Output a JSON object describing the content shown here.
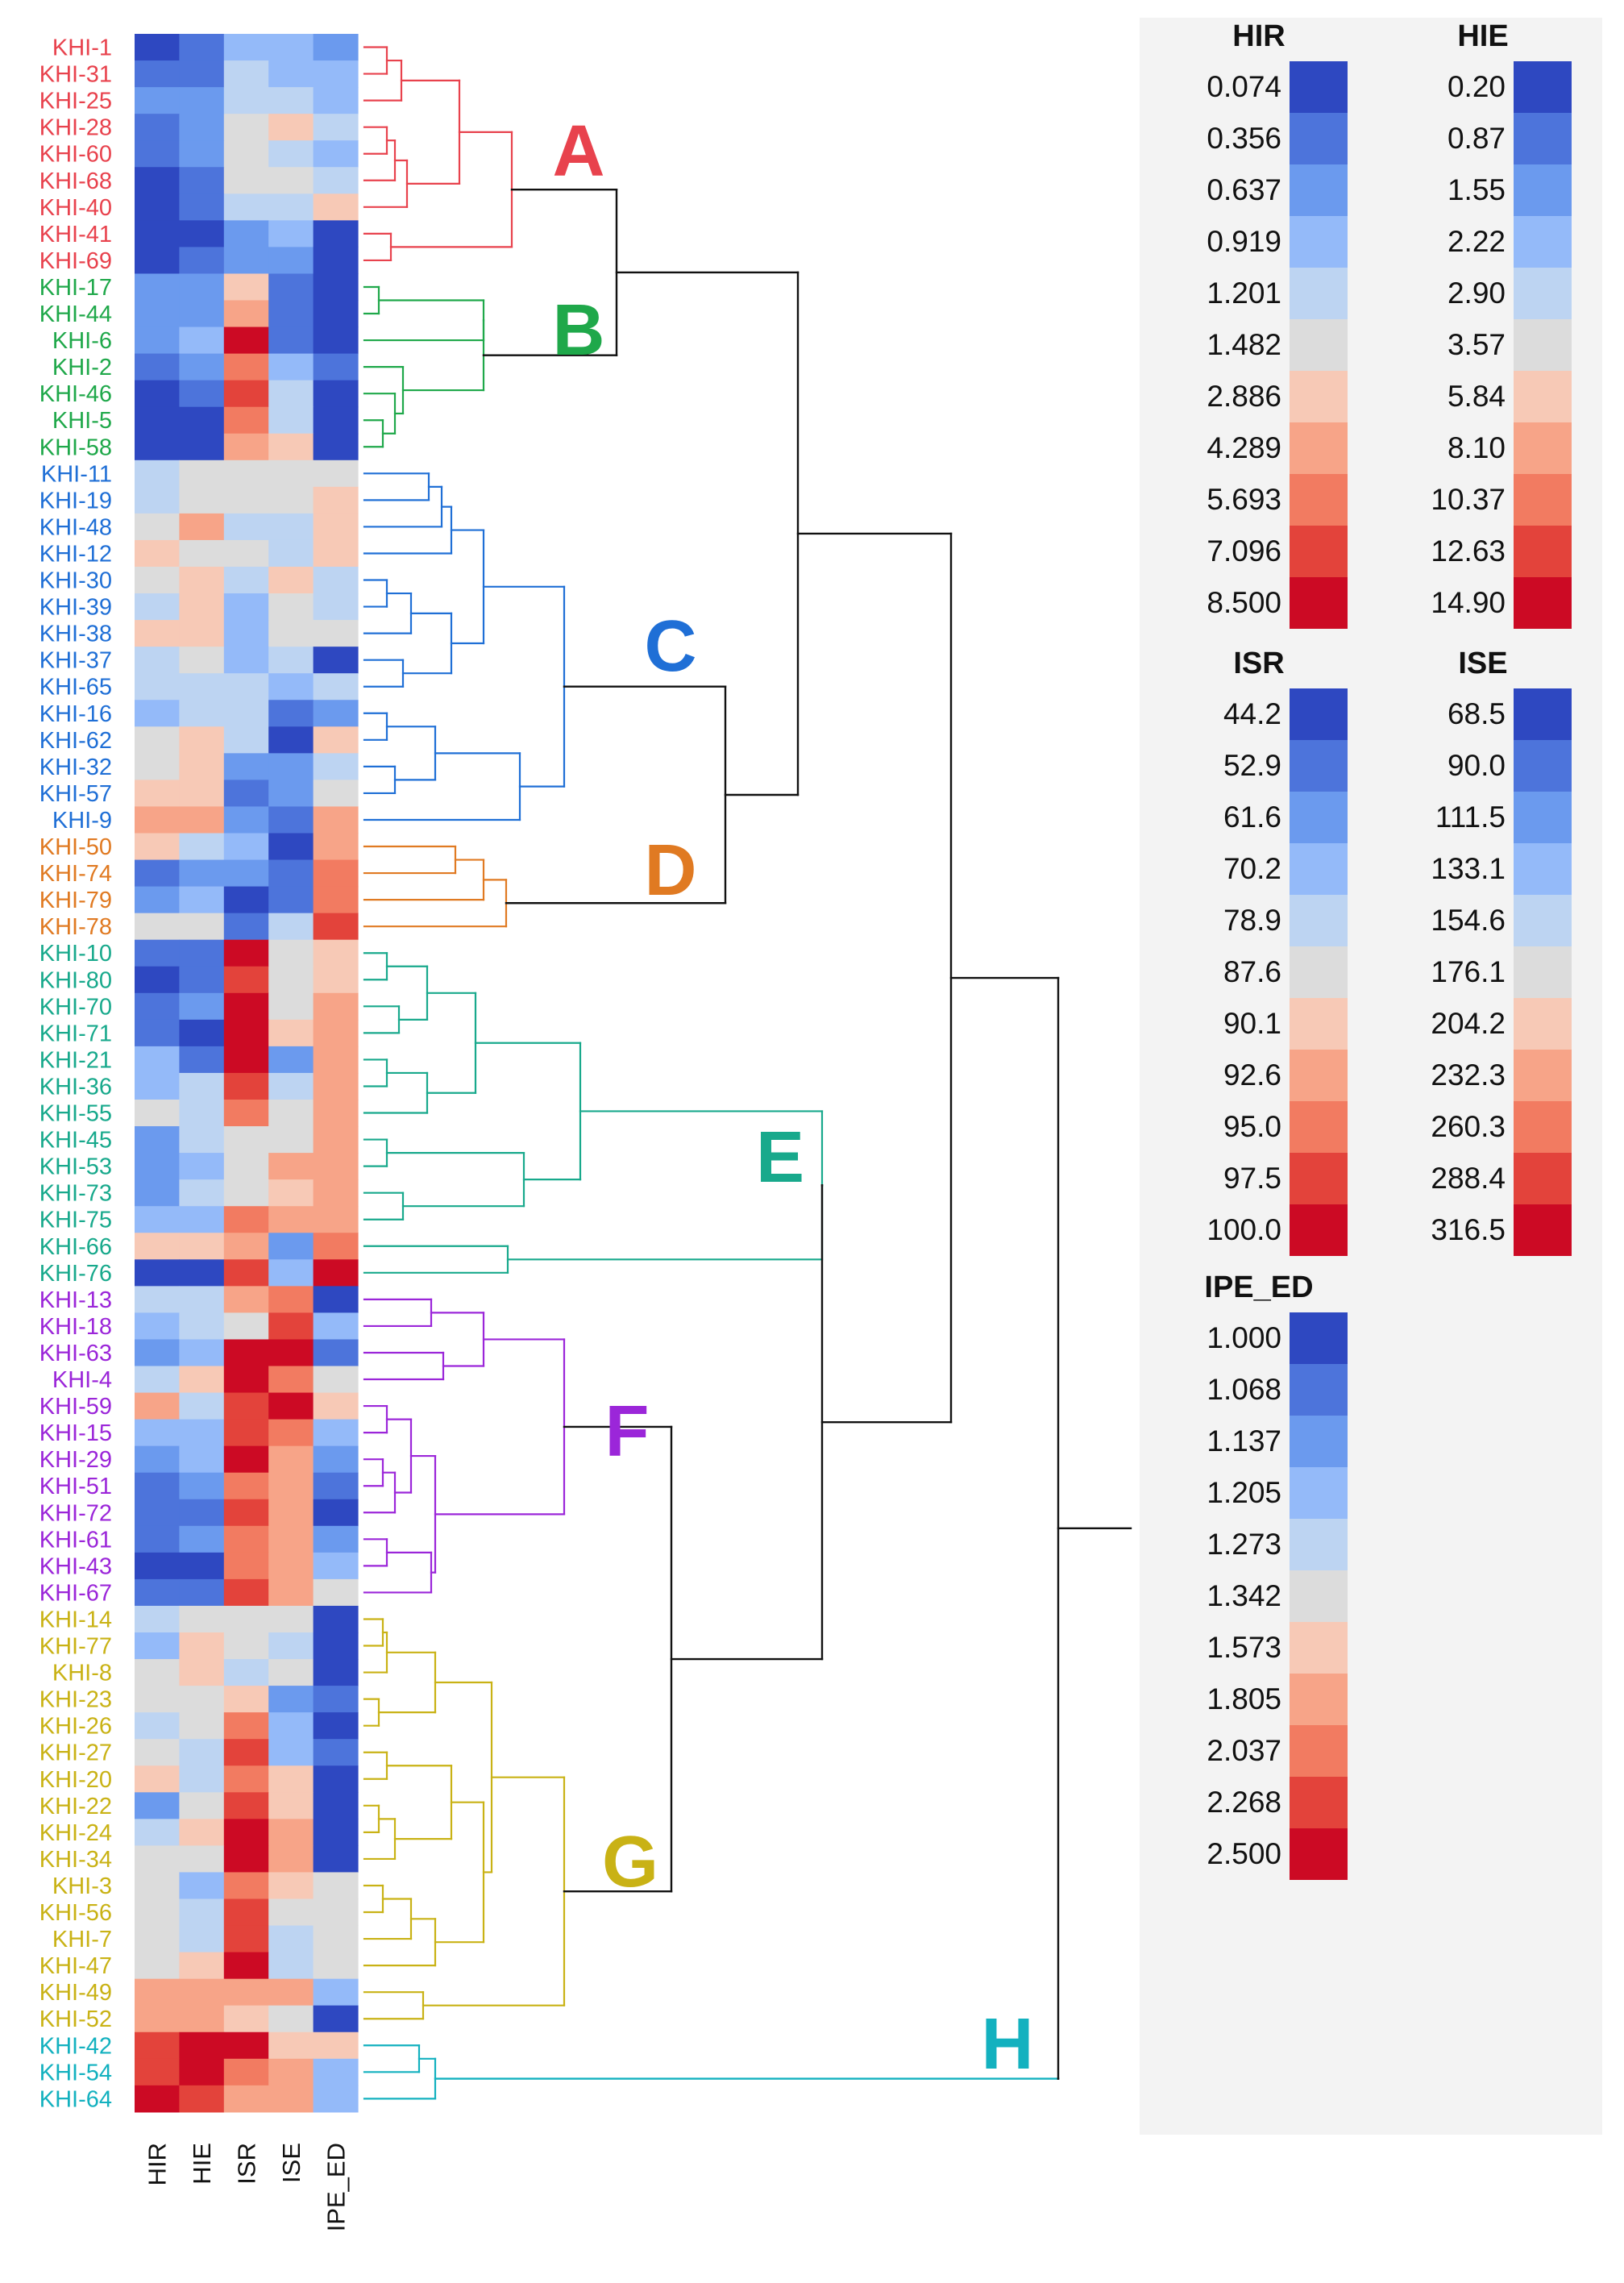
{
  "colors": {
    "scale": [
      "#2e48c1",
      "#4d74db",
      "#6b9aee",
      "#94baf9",
      "#bdd4f2",
      "#dcdcdc",
      "#f7c9b6",
      "#f7a488",
      "#f27b61",
      "#e3433b",
      "#cc0a24"
    ],
    "clusters": {
      "A": "#e8424d",
      "B": "#1fa84a",
      "C": "#1f6fd6",
      "D": "#e07a22",
      "E": "#18a98c",
      "F": "#9b26d9",
      "G": "#c9b215",
      "H": "#13b1bf",
      "root": "#111111"
    }
  },
  "chart_data": {
    "type": "heatmap",
    "columns": [
      "HIR",
      "HIE",
      "ISR",
      "ISE",
      "IPE_ED"
    ],
    "clusters": [
      {
        "name": "A",
        "rows": [
          "KHI-1",
          "KHI-31",
          "KHI-25",
          "KHI-28",
          "KHI-60",
          "KHI-68",
          "KHI-40",
          "KHI-41",
          "KHI-69"
        ]
      },
      {
        "name": "B",
        "rows": [
          "KHI-17",
          "KHI-44",
          "KHI-6",
          "KHI-2",
          "KHI-46",
          "KHI-5",
          "KHI-58"
        ]
      },
      {
        "name": "C",
        "rows": [
          "KHI-11",
          "KHI-19",
          "KHI-48",
          "KHI-12",
          "KHI-30",
          "KHI-39",
          "KHI-38",
          "KHI-37",
          "KHI-65",
          "KHI-16",
          "KHI-62",
          "KHI-32",
          "KHI-57",
          "KHI-9"
        ]
      },
      {
        "name": "D",
        "rows": [
          "KHI-50",
          "KHI-74",
          "KHI-79",
          "KHI-78"
        ]
      },
      {
        "name": "E",
        "rows": [
          "KHI-10",
          "KHI-80",
          "KHI-70",
          "KHI-71",
          "KHI-21",
          "KHI-36",
          "KHI-55",
          "KHI-45",
          "KHI-53",
          "KHI-73",
          "KHI-75",
          "KHI-66",
          "KHI-76"
        ]
      },
      {
        "name": "F",
        "rows": [
          "KHI-13",
          "KHI-18",
          "KHI-63",
          "KHI-4",
          "KHI-59",
          "KHI-15",
          "KHI-29",
          "KHI-51",
          "KHI-72",
          "KHI-61",
          "KHI-43",
          "KHI-67"
        ]
      },
      {
        "name": "G",
        "rows": [
          "KHI-14",
          "KHI-77",
          "KHI-8",
          "KHI-23",
          "KHI-26",
          "KHI-27",
          "KHI-20",
          "KHI-22",
          "KHI-24",
          "KHI-34",
          "KHI-3",
          "KHI-56",
          "KHI-7",
          "KHI-47",
          "KHI-49",
          "KHI-52"
        ]
      },
      {
        "name": "H",
        "rows": [
          "KHI-42",
          "KHI-54",
          "KHI-64"
        ]
      }
    ],
    "cells": [
      [
        0,
        1,
        3,
        3,
        2
      ],
      [
        1,
        1,
        4,
        3,
        3
      ],
      [
        2,
        2,
        4,
        4,
        3
      ],
      [
        1,
        2,
        5,
        6,
        4
      ],
      [
        1,
        2,
        5,
        4,
        3
      ],
      [
        0,
        1,
        5,
        5,
        4
      ],
      [
        0,
        1,
        4,
        4,
        6
      ],
      [
        0,
        0,
        2,
        3,
        0
      ],
      [
        0,
        1,
        2,
        2,
        0
      ],
      [
        2,
        2,
        6,
        1,
        0
      ],
      [
        2,
        2,
        7,
        1,
        0
      ],
      [
        2,
        3,
        10,
        1,
        0
      ],
      [
        1,
        2,
        8,
        3,
        1
      ],
      [
        0,
        1,
        9,
        4,
        0
      ],
      [
        0,
        0,
        8,
        4,
        0
      ],
      [
        0,
        0,
        7,
        6,
        0
      ],
      [
        4,
        5,
        5,
        5,
        5
      ],
      [
        4,
        5,
        5,
        5,
        6
      ],
      [
        5,
        7,
        4,
        4,
        6
      ],
      [
        6,
        5,
        5,
        4,
        6
      ],
      [
        5,
        6,
        4,
        6,
        4
      ],
      [
        4,
        6,
        3,
        5,
        4
      ],
      [
        6,
        6,
        3,
        5,
        5
      ],
      [
        4,
        5,
        3,
        4,
        0
      ],
      [
        4,
        4,
        4,
        3,
        4
      ],
      [
        3,
        4,
        4,
        1,
        2
      ],
      [
        5,
        6,
        4,
        0,
        6
      ],
      [
        5,
        6,
        2,
        2,
        4
      ],
      [
        6,
        6,
        1,
        2,
        5
      ],
      [
        7,
        7,
        2,
        1,
        7
      ],
      [
        6,
        4,
        3,
        0,
        7
      ],
      [
        1,
        2,
        2,
        1,
        8
      ],
      [
        2,
        3,
        0,
        1,
        8
      ],
      [
        5,
        5,
        1,
        4,
        9
      ],
      [
        1,
        1,
        10,
        5,
        6
      ],
      [
        0,
        1,
        9,
        5,
        6
      ],
      [
        1,
        2,
        10,
        5,
        7
      ],
      [
        1,
        0,
        10,
        6,
        7
      ],
      [
        3,
        1,
        10,
        2,
        7
      ],
      [
        3,
        4,
        9,
        4,
        7
      ],
      [
        5,
        4,
        8,
        5,
        7
      ],
      [
        2,
        4,
        5,
        5,
        7
      ],
      [
        2,
        3,
        5,
        7,
        7
      ],
      [
        2,
        4,
        5,
        6,
        7
      ],
      [
        3,
        3,
        8,
        7,
        7
      ],
      [
        6,
        6,
        7,
        2,
        8
      ],
      [
        0,
        0,
        9,
        3,
        10
      ],
      [
        4,
        4,
        7,
        8,
        0
      ],
      [
        3,
        4,
        5,
        9,
        3
      ],
      [
        2,
        3,
        10,
        10,
        1
      ],
      [
        4,
        6,
        10,
        8,
        5
      ],
      [
        7,
        4,
        9,
        10,
        6
      ],
      [
        3,
        3,
        9,
        8,
        3
      ],
      [
        2,
        3,
        10,
        7,
        2
      ],
      [
        1,
        2,
        8,
        7,
        1
      ],
      [
        1,
        1,
        9,
        7,
        0
      ],
      [
        1,
        2,
        8,
        7,
        2
      ],
      [
        0,
        0,
        8,
        7,
        3
      ],
      [
        1,
        1,
        9,
        7,
        5
      ],
      [
        4,
        5,
        5,
        5,
        0
      ],
      [
        3,
        6,
        5,
        4,
        0
      ],
      [
        5,
        6,
        4,
        5,
        0
      ],
      [
        5,
        5,
        6,
        2,
        1
      ],
      [
        4,
        5,
        8,
        3,
        0
      ],
      [
        5,
        4,
        9,
        3,
        1
      ],
      [
        6,
        4,
        8,
        6,
        0
      ],
      [
        2,
        5,
        9,
        6,
        0
      ],
      [
        4,
        6,
        10,
        7,
        0
      ],
      [
        5,
        5,
        10,
        7,
        0
      ],
      [
        5,
        3,
        8,
        6,
        5
      ],
      [
        5,
        4,
        9,
        5,
        5
      ],
      [
        5,
        4,
        9,
        4,
        5
      ],
      [
        5,
        6,
        10,
        4,
        5
      ],
      [
        7,
        7,
        7,
        7,
        3
      ],
      [
        7,
        7,
        6,
        5,
        0
      ],
      [
        9,
        10,
        10,
        6,
        6
      ],
      [
        9,
        10,
        8,
        7,
        3
      ],
      [
        10,
        9,
        7,
        7,
        3
      ]
    ],
    "legends": [
      {
        "title": "HIR",
        "labels": [
          "0.074",
          "0.356",
          "0.637",
          "0.919",
          "1.201",
          "1.482",
          "2.886",
          "4.289",
          "5.693",
          "7.096",
          "8.500"
        ]
      },
      {
        "title": "HIE",
        "labels": [
          "0.20",
          "0.87",
          "1.55",
          "2.22",
          "2.90",
          "3.57",
          "5.84",
          "8.10",
          "10.37",
          "12.63",
          "14.90"
        ]
      },
      {
        "title": "ISR",
        "labels": [
          "44.2",
          "52.9",
          "61.6",
          "70.2",
          "78.9",
          "87.6",
          "90.1",
          "92.6",
          "95.0",
          "97.5",
          "100.0"
        ]
      },
      {
        "title": "ISE",
        "labels": [
          "68.5",
          "90.0",
          "111.5",
          "133.1",
          "154.6",
          "176.1",
          "204.2",
          "232.3",
          "260.3",
          "288.4",
          "316.5"
        ]
      },
      {
        "title": "IPE_ED",
        "labels": [
          "1.000",
          "1.068",
          "1.137",
          "1.205",
          "1.273",
          "1.342",
          "1.573",
          "1.805",
          "2.037",
          "2.268",
          "2.500"
        ]
      }
    ]
  }
}
